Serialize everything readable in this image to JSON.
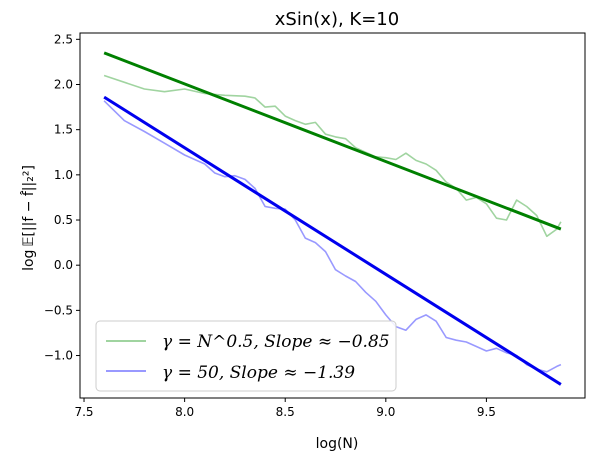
{
  "chart_data": {
    "type": "line",
    "title": "xSin(x), K=10",
    "xlabel": "log(N)",
    "ylabel": "log 𝔼[||f − f̂||₂²]",
    "xlim": [
      7.48,
      9.99
    ],
    "ylim": [
      -1.47,
      2.57
    ],
    "x_ticks": [
      7.5,
      8.0,
      8.5,
      9.0,
      9.5
    ],
    "x_tick_labels": [
      "7.5",
      "8.0",
      "8.5",
      "9.0",
      "9.5"
    ],
    "y_ticks": [
      2.5,
      2.0,
      1.5,
      1.0,
      0.5,
      0.0,
      -0.5,
      -1.0
    ],
    "y_tick_labels": [
      "2.5",
      "2.0",
      "1.5",
      "1.0",
      "0.5",
      "0.0",
      "−0.5",
      "−1.0"
    ],
    "grid": false,
    "legend_position": "lower-left",
    "series": [
      {
        "name": "γ = N^0.5, Slope ≈ −0.85",
        "color": "#2ca02c",
        "opacity": 0.45,
        "x": [
          7.6,
          7.8,
          7.9,
          8.0,
          8.1,
          8.2,
          8.3,
          8.35,
          8.4,
          8.45,
          8.5,
          8.55,
          8.6,
          8.65,
          8.7,
          8.75,
          8.8,
          8.85,
          8.9,
          8.95,
          9.0,
          9.05,
          9.1,
          9.15,
          9.2,
          9.25,
          9.3,
          9.35,
          9.4,
          9.45,
          9.5,
          9.55,
          9.6,
          9.65,
          9.7,
          9.75,
          9.8,
          9.85,
          9.87
        ],
        "y": [
          2.1,
          1.95,
          1.92,
          1.95,
          1.9,
          1.88,
          1.87,
          1.85,
          1.75,
          1.76,
          1.65,
          1.6,
          1.56,
          1.58,
          1.45,
          1.42,
          1.4,
          1.3,
          1.25,
          1.2,
          1.19,
          1.17,
          1.24,
          1.16,
          1.12,
          1.05,
          0.92,
          0.85,
          0.72,
          0.75,
          0.68,
          0.52,
          0.5,
          0.72,
          0.65,
          0.55,
          0.32,
          0.4,
          0.48
        ]
      },
      {
        "name": "γ = 50, Slope ≈ −1.39",
        "color": "#0000ff",
        "opacity": 0.4,
        "x": [
          7.6,
          7.7,
          7.8,
          7.9,
          8.0,
          8.1,
          8.15,
          8.2,
          8.25,
          8.3,
          8.35,
          8.4,
          8.45,
          8.5,
          8.55,
          8.6,
          8.65,
          8.7,
          8.75,
          8.8,
          8.85,
          8.9,
          8.95,
          9.0,
          9.05,
          9.1,
          9.15,
          9.2,
          9.25,
          9.3,
          9.35,
          9.4,
          9.45,
          9.5,
          9.55,
          9.6,
          9.65,
          9.7,
          9.75,
          9.8,
          9.85,
          9.87
        ],
        "y": [
          1.82,
          1.6,
          1.48,
          1.35,
          1.22,
          1.12,
          1.02,
          0.98,
          0.99,
          0.95,
          0.85,
          0.65,
          0.63,
          0.62,
          0.5,
          0.3,
          0.25,
          0.15,
          -0.05,
          -0.12,
          -0.18,
          -0.3,
          -0.4,
          -0.55,
          -0.68,
          -0.72,
          -0.6,
          -0.55,
          -0.62,
          -0.8,
          -0.83,
          -0.85,
          -0.9,
          -0.95,
          -0.92,
          -0.97,
          -1.0,
          -1.1,
          -1.15,
          -1.18,
          -1.12,
          -1.1
        ]
      }
    ],
    "fit_lines": [
      {
        "series": 0,
        "color": "#008000",
        "x": [
          7.6,
          9.87
        ],
        "y": [
          2.35,
          0.4
        ]
      },
      {
        "series": 1,
        "color": "#0000ee",
        "x": [
          7.6,
          9.87
        ],
        "y": [
          1.86,
          -1.32
        ]
      }
    ]
  }
}
